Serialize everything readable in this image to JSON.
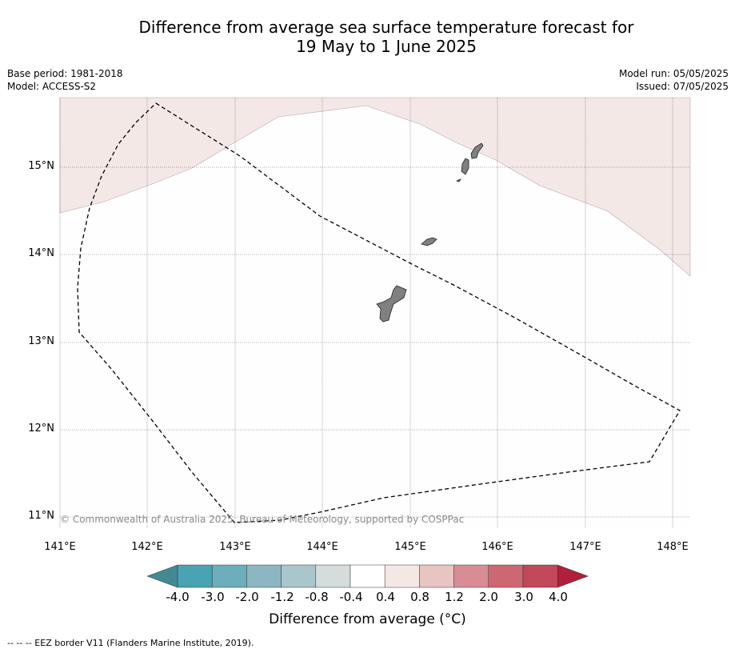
{
  "title_line1": "Difference from average sea surface temperature forecast for",
  "title_line2": "19 May to 1 June 2025",
  "meta_left": {
    "base_period": "Base period: 1981-2018",
    "model": "Model: ACCESS-S2"
  },
  "meta_right": {
    "model_run": "Model run: 05/05/2025",
    "issued": "Issued: 07/05/2025"
  },
  "map": {
    "lat_labels": [
      "15°N",
      "14°N",
      "13°N",
      "12°N",
      "11°N"
    ],
    "lon_labels": [
      "141°E",
      "142°E",
      "143°E",
      "144°E",
      "145°E",
      "146°E",
      "147°E",
      "148°E"
    ],
    "copyright": "© Commonwealth of Australia 2025, Bureau of Meteorology, supported by COSPPac",
    "warm_anomaly_color": "#f4e8e6",
    "land_color": "#808080"
  },
  "colorbar": {
    "labels": [
      "-4.0",
      "-3.0",
      "-2.0",
      "-1.2",
      "-0.8",
      "-0.4",
      "0.4",
      "0.8",
      "1.2",
      "2.0",
      "3.0",
      "4.0"
    ],
    "colors": [
      "#438994",
      "#48a3b3",
      "#6caebb",
      "#8cb7c2",
      "#a8c6cb",
      "#d5dcdc",
      "#ffffff",
      "#f4e8e6",
      "#e8c5c1",
      "#d88d94",
      "#cd6873",
      "#c14959",
      "#b01f3c"
    ],
    "title": "Difference from average (°C)"
  },
  "footnote": "-- -- -- EEZ border V11 (Flanders Marine Institute, 2019)."
}
